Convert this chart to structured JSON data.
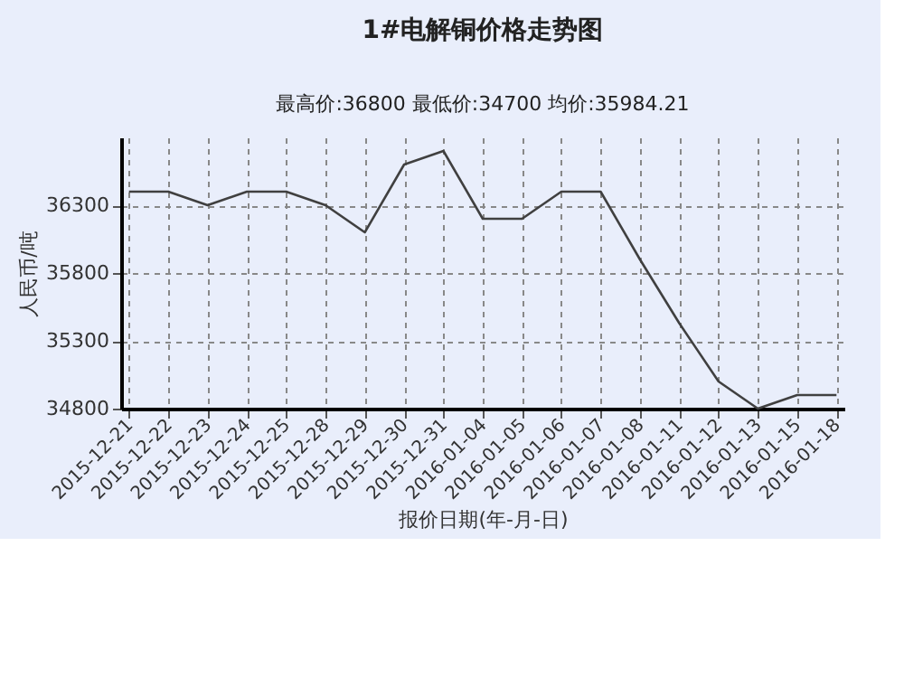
{
  "chart_data": {
    "type": "line",
    "title": "1#电解铜价格走势图",
    "xlabel": "报价日期(年-月-日)",
    "ylabel": "人民币/吨",
    "annotations": [
      "最高价:36800",
      "最低价:34700",
      "均价:35984.21"
    ],
    "categories": [
      "2015-12-21",
      "2015-12-22",
      "2015-12-23",
      "2015-12-24",
      "2015-12-25",
      "2015-12-28",
      "2015-12-29",
      "2015-12-30",
      "2015-12-31",
      "2016-01-04",
      "2016-01-05",
      "2016-01-06",
      "2016-01-07",
      "2016-01-08",
      "2016-01-11",
      "2016-01-12",
      "2016-01-13",
      "2016-01-15",
      "2016-01-18"
    ],
    "series": [
      {
        "color": "#404040",
        "values": [
          36400,
          36400,
          36300,
          36400,
          36400,
          36300,
          36100,
          36600,
          36700,
          36200,
          36200,
          36400,
          36400,
          35900,
          35430,
          35000,
          34800,
          34900,
          34900
        ]
      }
    ],
    "ylim": [
      34800,
      36800
    ],
    "yticks": [
      34800,
      35300,
      35800,
      36300
    ],
    "grid": true,
    "marker": "none",
    "line_style": "solid"
  }
}
